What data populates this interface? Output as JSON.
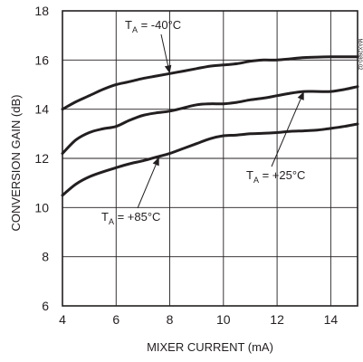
{
  "chart_data": {
    "type": "line",
    "xlabel": "MIXER CURRENT (mA)",
    "ylabel": "CONVERSION GAIN (dB)",
    "xlim": [
      4,
      15
    ],
    "ylim": [
      6,
      18
    ],
    "xticks": [
      4,
      6,
      8,
      10,
      12,
      14
    ],
    "yticks": [
      6,
      8,
      10,
      12,
      14,
      16,
      18
    ],
    "grid": true,
    "series": [
      {
        "name": "T_A = -40°C",
        "x": [
          4,
          4.5,
          5,
          5.5,
          6,
          6.5,
          7,
          7.5,
          8,
          8.5,
          9,
          9.5,
          10,
          10.5,
          11,
          11.5,
          12,
          12.5,
          13,
          13.5,
          14,
          14.5,
          15
        ],
        "y": [
          14.0,
          14.3,
          14.55,
          14.8,
          15.0,
          15.12,
          15.25,
          15.35,
          15.45,
          15.55,
          15.65,
          15.75,
          15.8,
          15.85,
          15.95,
          16.0,
          16.0,
          16.05,
          16.1,
          16.12,
          16.13,
          16.13,
          16.13
        ]
      },
      {
        "name": "T_A = +25°C",
        "x": [
          4,
          4.5,
          5,
          5.5,
          6,
          6.5,
          7,
          7.5,
          8,
          8.5,
          9,
          9.5,
          10,
          10.5,
          11,
          11.5,
          12,
          12.5,
          13,
          13.5,
          14,
          14.5,
          15
        ],
        "y": [
          12.2,
          12.75,
          13.05,
          13.2,
          13.3,
          13.55,
          13.75,
          13.85,
          13.92,
          14.05,
          14.18,
          14.22,
          14.22,
          14.28,
          14.38,
          14.45,
          14.55,
          14.65,
          14.72,
          14.72,
          14.72,
          14.8,
          14.92
        ]
      },
      {
        "name": "T_A = +85°C",
        "x": [
          4,
          4.5,
          5,
          5.5,
          6,
          6.5,
          7,
          7.5,
          8,
          8.5,
          9,
          9.5,
          10,
          10.5,
          11,
          11.5,
          12,
          12.5,
          13,
          13.5,
          14,
          14.5,
          15
        ],
        "y": [
          10.5,
          10.95,
          11.25,
          11.45,
          11.62,
          11.78,
          11.9,
          12.05,
          12.2,
          12.4,
          12.6,
          12.8,
          12.92,
          12.95,
          13.0,
          13.02,
          13.05,
          13.1,
          13.12,
          13.15,
          13.22,
          13.3,
          13.4
        ]
      }
    ],
    "annotations": [
      {
        "prefix": "T",
        "sub": "A",
        "suffix": " = -40°C",
        "series": 0,
        "point_x": 8.0,
        "point_y": 15.45
      },
      {
        "prefix": "T",
        "sub": "A",
        "suffix": " = +25°C",
        "series": 1,
        "point_x": 13.0,
        "point_y": 14.72
      },
      {
        "prefix": "T",
        "sub": "A",
        "suffix": " = +85°C",
        "series": 2,
        "point_x": 7.6,
        "point_y": 12.05
      }
    ],
    "watermark": "MAX2680-02"
  }
}
